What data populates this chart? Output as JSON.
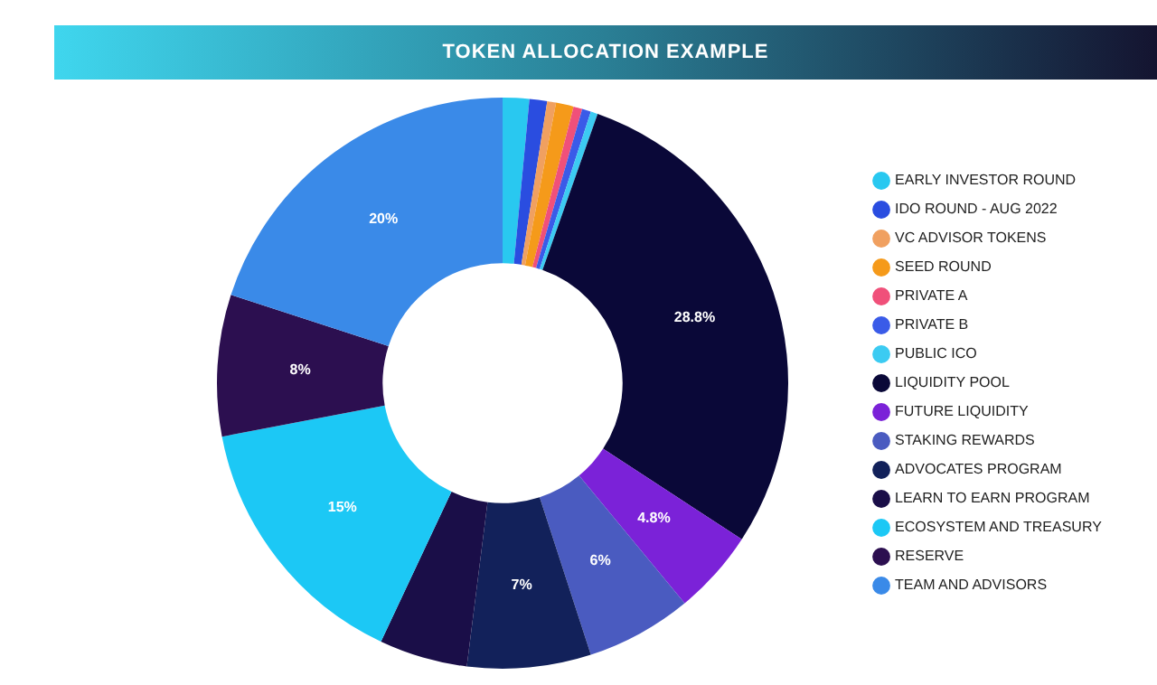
{
  "chart_data": {
    "type": "donut",
    "title": "TOKEN ALLOCATION EXAMPLE",
    "categories": [
      "EARLY INVESTOR ROUND",
      "IDO ROUND - AUG 2022",
      "VC ADVISOR TOKENS",
      "SEED ROUND",
      "PRIVATE A",
      "PRIVATE B",
      "PUBLIC ICO",
      "LIQUIDITY POOL",
      "FUTURE LIQUIDITY",
      "STAKING REWARDS",
      "ADVOCATES PROGRAM",
      "LEARN TO EARN PROGRAM",
      "ECOSYSTEM AND TREASURY",
      "RESERVE",
      "TEAM AND ADVISORS"
    ],
    "values": [
      1.5,
      1,
      0.5,
      1,
      0.5,
      0.5,
      0.4,
      28.8,
      4.8,
      6,
      7,
      5,
      15,
      8,
      20
    ],
    "value_labels": [
      null,
      null,
      null,
      null,
      null,
      null,
      null,
      "28.8%",
      "4.8%",
      "6%",
      "7%",
      null,
      "15%",
      "8%",
      "20%"
    ],
    "colors": [
      "#29c8f0",
      "#2a4de0",
      "#f0a060",
      "#f59a1a",
      "#f0507a",
      "#3a5be8",
      "#3ccbf2",
      "#0a0838",
      "#7b22d8",
      "#4a5bc0",
      "#12215a",
      "#1a0e48",
      "#1cc8f5",
      "#2c0f50",
      "#3a8ae8"
    ],
    "legend": "right"
  }
}
